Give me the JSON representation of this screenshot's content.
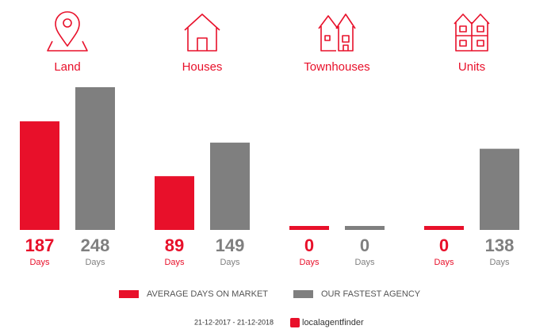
{
  "chart_data": {
    "type": "bar",
    "categories": [
      "Land",
      "Houses",
      "Townhouses",
      "Units"
    ],
    "series": [
      {
        "name": "AVERAGE DAYS ON MARKET",
        "color": "#e8102a",
        "values": [
          187,
          89,
          0,
          0
        ]
      },
      {
        "name": "OUR FASTEST AGENCY",
        "color": "#7f7f7f",
        "values": [
          248,
          149,
          0,
          138
        ]
      }
    ],
    "value_unit": "Days",
    "date_range": "21-12-2017 - 21-12-2018",
    "brand": "localagentfinder"
  }
}
